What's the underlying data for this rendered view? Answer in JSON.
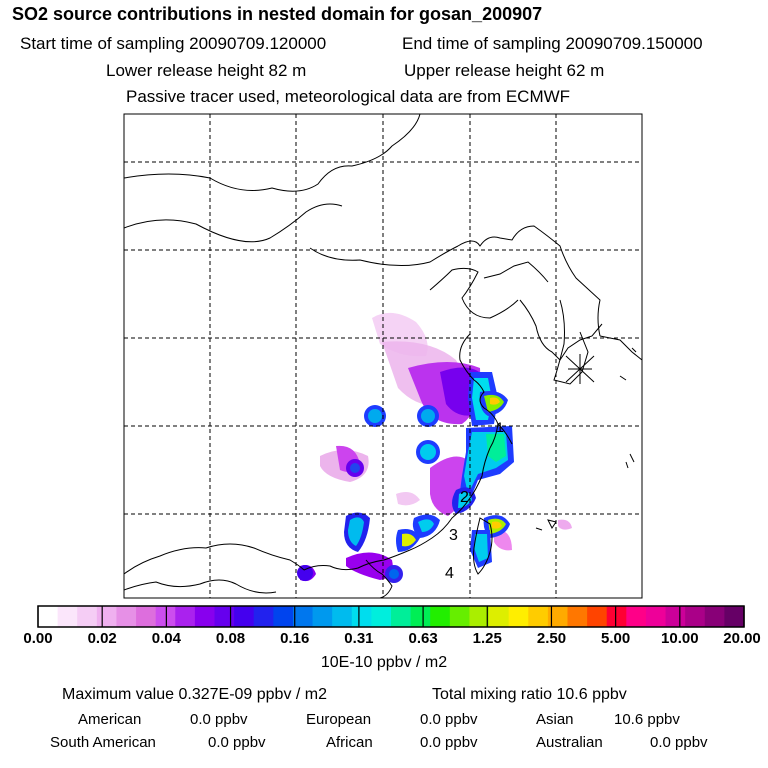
{
  "title": "SO2 source contributions in nested domain for gosan_200907",
  "header": {
    "start_label": "Start time of sampling 20090709.120000",
    "end_label": "End time of sampling 20090709.150000",
    "lower_label": "Lower release height   82 m",
    "upper_label": "Upper release height   62 m",
    "note": "Passive tracer used, meteorological data are from ECMWF"
  },
  "chart_data": {
    "type": "heatmap",
    "title": "SO2 source contributions in nested domain for gosan_200907",
    "colorbar": {
      "ticks": [
        "0.00",
        "0.02",
        "0.04",
        "0.08",
        "0.16",
        "0.31",
        "0.63",
        "1.25",
        "2.50",
        "5.00",
        "10.00",
        "20.00"
      ],
      "unit": "10E-10 ppbv / m2",
      "colors": [
        "#ffffff",
        "#fbe6fb",
        "#f5cdf5",
        "#efb0ef",
        "#e690e6",
        "#dd6edd",
        "#cc4dee",
        "#aa22ee",
        "#8800ee",
        "#6600ee",
        "#4400ee",
        "#2222ee",
        "#0044ee",
        "#0077ee",
        "#0099ee",
        "#00bbee",
        "#00ddee",
        "#00eedd",
        "#00ee99",
        "#00ee55",
        "#22ee00",
        "#66ee00",
        "#aaee00",
        "#ddee00",
        "#ffee00",
        "#ffcc00",
        "#ffaa00",
        "#ff7700",
        "#ff4400",
        "#ff0033",
        "#ff0088",
        "#ee0099",
        "#cc0099",
        "#aa0088",
        "#880077",
        "#660066"
      ]
    },
    "receptor_marker": "gosan",
    "region_labels": [
      "1",
      "2",
      "3",
      "4"
    ]
  },
  "stats": {
    "max_value": "Maximum value  0.327E-09 ppbv / m2",
    "total_mixing": "Total mixing ratio      10.6 ppbv",
    "regions": [
      {
        "name": "American",
        "value": "0.0 ppbv"
      },
      {
        "name": "European",
        "value": "0.0 ppbv"
      },
      {
        "name": "Asian",
        "value": "10.6 ppbv"
      },
      {
        "name": "South American",
        "value": "0.0 ppbv"
      },
      {
        "name": "African",
        "value": "0.0 ppbv"
      },
      {
        "name": "Australian",
        "value": "0.0 ppbv"
      }
    ]
  }
}
